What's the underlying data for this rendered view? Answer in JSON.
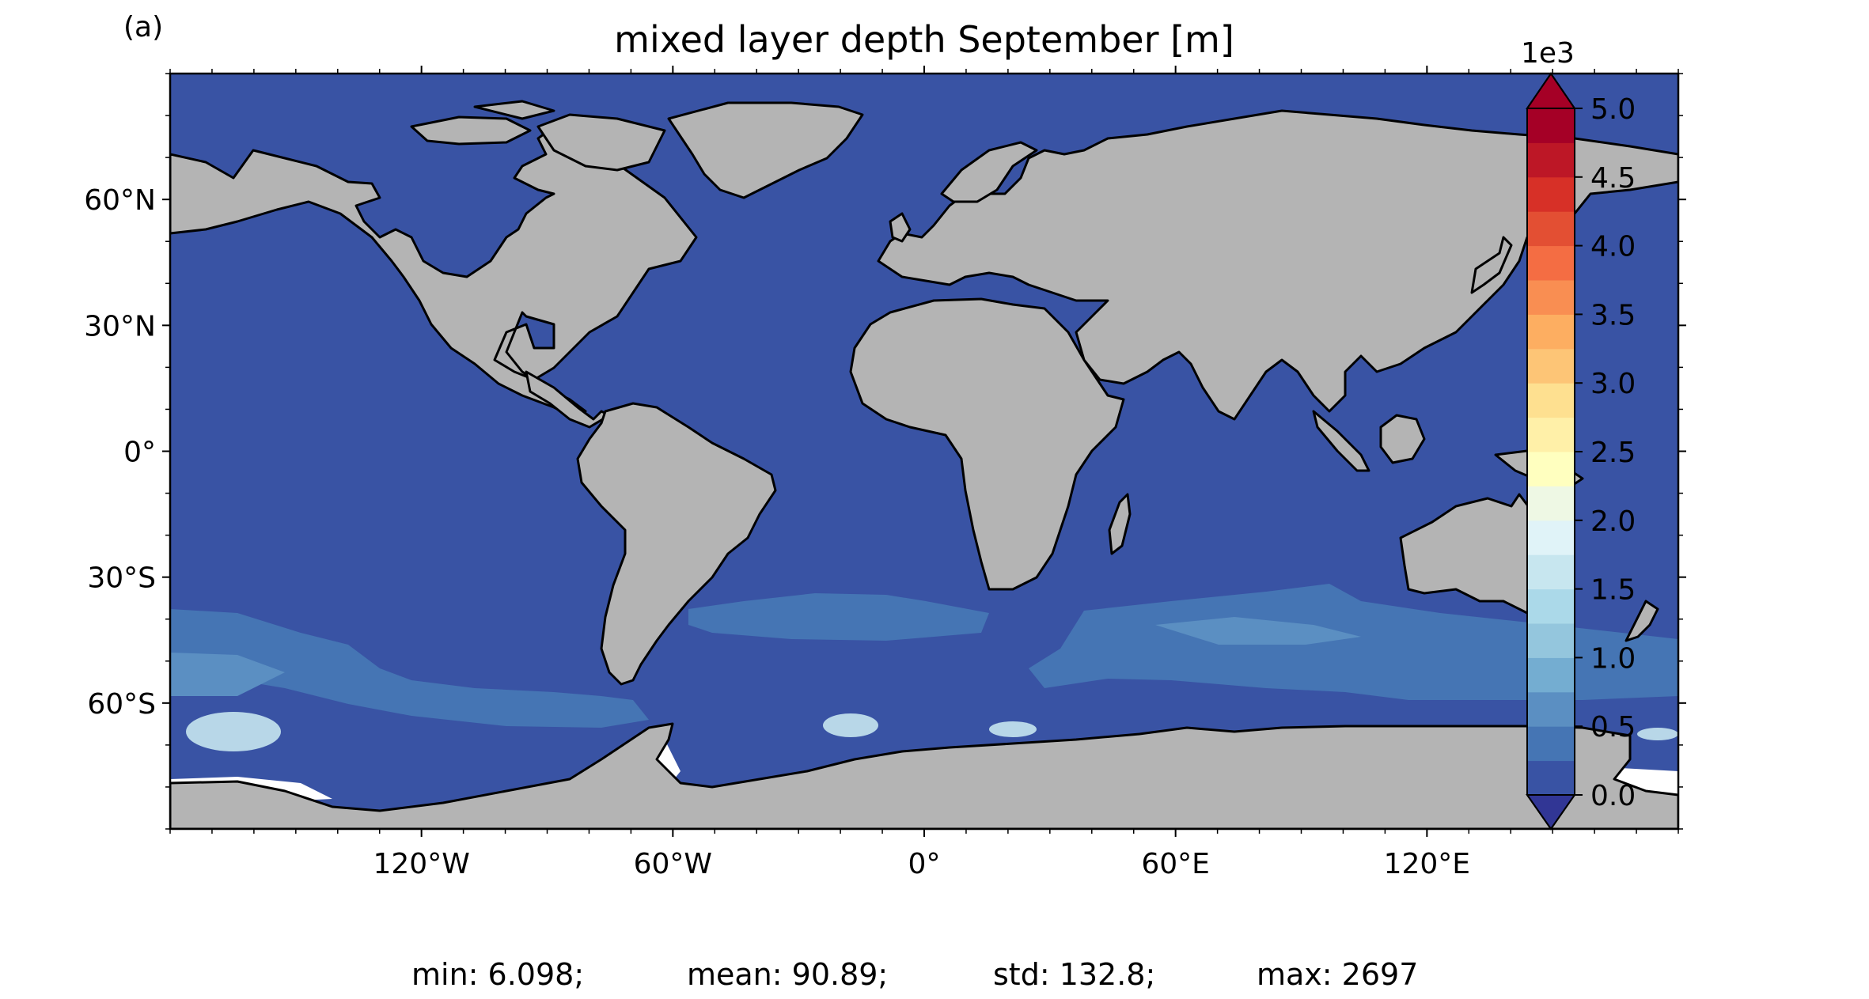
{
  "panel_label": "(a)",
  "title": "mixed layer depth September [m]",
  "colorbar": {
    "multiplier_label": "1e3",
    "tick_labels": [
      "5.0",
      "4.5",
      "4.0",
      "3.5",
      "3.0",
      "2.5",
      "2.0",
      "1.5",
      "1.0",
      "0.5",
      "0.0"
    ],
    "tick_values": [
      5.0,
      4.5,
      4.0,
      3.5,
      3.0,
      2.5,
      2.0,
      1.5,
      1.0,
      0.5,
      0.0
    ],
    "range": [
      0,
      5000
    ],
    "extend": "both",
    "colors": [
      "#313695",
      "#3953a4",
      "#4575b4",
      "#5b8fc2",
      "#74add1",
      "#94c6dd",
      "#abd9e9",
      "#c7e6ef",
      "#e0f3f8",
      "#eef8e4",
      "#ffffbf",
      "#fff0a8",
      "#fee090",
      "#fdc576",
      "#fdae61",
      "#f98e52",
      "#f46d43",
      "#e34f33",
      "#d73027",
      "#bd1726",
      "#a50026"
    ]
  },
  "axes": {
    "y_tick_labels": [
      "60°N",
      "30°N",
      "0°",
      "30°S",
      "60°S"
    ],
    "y_tick_values": [
      60,
      30,
      0,
      -30,
      -60
    ],
    "x_tick_labels": [
      "120°W",
      "60°W",
      "0°",
      "60°E",
      "120°E"
    ],
    "x_tick_values": [
      -120,
      -60,
      0,
      60,
      120
    ],
    "lon_range": [
      -180,
      180
    ],
    "lat_range": [
      -90,
      90
    ]
  },
  "map": {
    "projection": "equirectangular",
    "ocean_color": "#3953a4",
    "land_color": "#b4b4b4",
    "coastline_color": "#000000",
    "missing_color": "#ffffff"
  },
  "stats": {
    "min": "min: 6.098;",
    "mean": "mean: 90.89;",
    "std": "std: 132.8;",
    "max": "max: 2697"
  }
}
